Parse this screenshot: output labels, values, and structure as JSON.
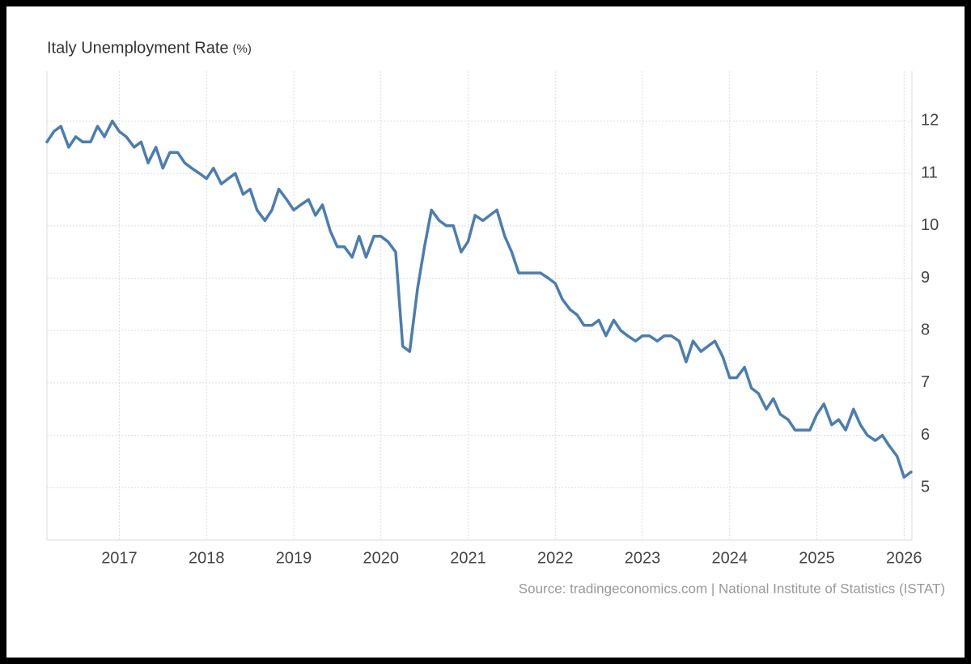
{
  "chart_data": {
    "type": "line",
    "title": "Italy Unemployment Rate",
    "unit": "(%)",
    "source": "Source: tradingeconomics.com | National Institute of Statistics (ISTAT)",
    "color": "#4a7db3",
    "grid": true,
    "xlim": [
      2016.17,
      2026.09
    ],
    "xticks": [
      2017,
      2018,
      2019,
      2020,
      2021,
      2022,
      2023,
      2024,
      2025,
      2026
    ],
    "ylim": [
      4,
      12.95
    ],
    "yticks": [
      5,
      6,
      7,
      8,
      9,
      10,
      11,
      12
    ],
    "x": [
      2016.17,
      2016.25,
      2016.33,
      2016.42,
      2016.5,
      2016.58,
      2016.67,
      2016.75,
      2016.83,
      2016.92,
      2017,
      2017.08,
      2017.17,
      2017.25,
      2017.33,
      2017.42,
      2017.5,
      2017.58,
      2017.67,
      2017.75,
      2017.83,
      2017.92,
      2018,
      2018.08,
      2018.17,
      2018.25,
      2018.33,
      2018.42,
      2018.5,
      2018.58,
      2018.67,
      2018.75,
      2018.83,
      2018.92,
      2019,
      2019.08,
      2019.17,
      2019.25,
      2019.33,
      2019.42,
      2019.5,
      2019.58,
      2019.67,
      2019.75,
      2019.83,
      2019.92,
      2020,
      2020.08,
      2020.17,
      2020.25,
      2020.33,
      2020.42,
      2020.5,
      2020.58,
      2020.67,
      2020.75,
      2020.83,
      2020.92,
      2021,
      2021.08,
      2021.17,
      2021.25,
      2021.33,
      2021.42,
      2021.5,
      2021.58,
      2021.67,
      2021.75,
      2021.83,
      2021.92,
      2022,
      2022.08,
      2022.17,
      2022.25,
      2022.33,
      2022.42,
      2022.5,
      2022.58,
      2022.67,
      2022.75,
      2022.83,
      2022.92,
      2023,
      2023.08,
      2023.17,
      2023.25,
      2023.33,
      2023.42,
      2023.5,
      2023.58,
      2023.67,
      2023.75,
      2023.83,
      2023.92,
      2024,
      2024.08,
      2024.17,
      2024.25,
      2024.33,
      2024.42,
      2024.5,
      2024.58,
      2024.67,
      2024.75,
      2024.83,
      2024.92,
      2025,
      2025.08,
      2025.17,
      2025.25,
      2025.33,
      2025.42,
      2025.5,
      2025.58,
      2025.67,
      2025.75,
      2025.83,
      2025.92,
      2026,
      2026.08
    ],
    "values": [
      11.6,
      11.8,
      11.9,
      11.5,
      11.7,
      11.6,
      11.6,
      11.9,
      11.7,
      12.0,
      11.8,
      11.7,
      11.5,
      11.6,
      11.2,
      11.5,
      11.1,
      11.4,
      11.4,
      11.2,
      11.1,
      11.0,
      10.9,
      11.1,
      10.8,
      10.9,
      11.0,
      10.6,
      10.7,
      10.3,
      10.1,
      10.3,
      10.7,
      10.5,
      10.3,
      10.4,
      10.5,
      10.2,
      10.4,
      9.9,
      9.6,
      9.6,
      9.4,
      9.8,
      9.4,
      9.8,
      9.8,
      9.7,
      9.5,
      7.7,
      7.6,
      8.8,
      9.6,
      10.3,
      10.1,
      10.0,
      10.0,
      9.5,
      9.7,
      10.2,
      10.1,
      10.2,
      10.3,
      9.8,
      9.5,
      9.1,
      9.1,
      9.1,
      9.1,
      9.0,
      8.9,
      8.6,
      8.4,
      8.3,
      8.1,
      8.1,
      8.2,
      7.9,
      8.2,
      8.0,
      7.9,
      7.8,
      7.9,
      7.9,
      7.8,
      7.9,
      7.9,
      7.8,
      7.4,
      7.8,
      7.6,
      7.7,
      7.8,
      7.5,
      7.1,
      7.1,
      7.3,
      6.9,
      6.8,
      6.5,
      6.7,
      6.4,
      6.3,
      6.1,
      6.1,
      6.1,
      6.4,
      6.6,
      6.2,
      6.3,
      6.1,
      6.5,
      6.2,
      6.0,
      5.9,
      6.0,
      5.8,
      5.6,
      5.2,
      5.3
    ]
  }
}
